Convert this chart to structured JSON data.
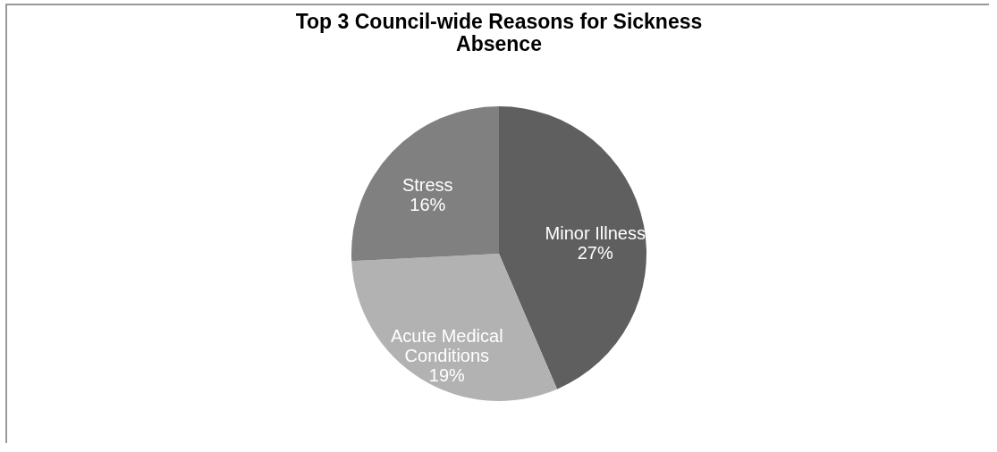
{
  "chart_data": {
    "type": "pie",
    "title": "Top 3 Council-wide Reasons for Sickness Absence",
    "categories": [
      "Minor Illness",
      "Acute Medical Conditions",
      "Stress"
    ],
    "values": [
      27,
      19,
      16
    ],
    "value_labels": [
      "27%",
      "19%",
      "16%"
    ],
    "colors": [
      "#5f5f5f",
      "#b2b2b2",
      "#808080"
    ],
    "legend": false
  }
}
